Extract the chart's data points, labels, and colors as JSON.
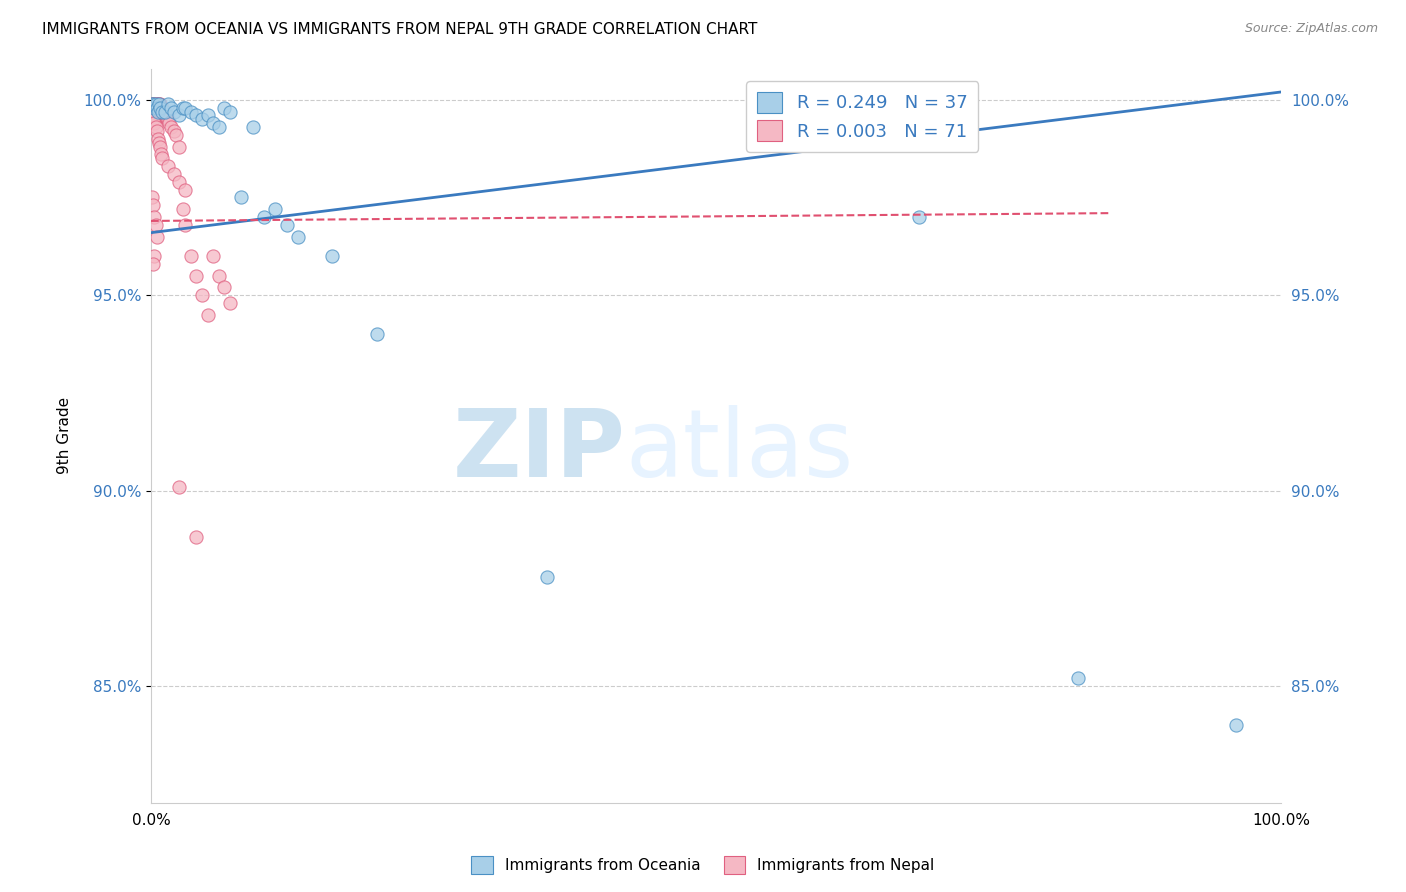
{
  "title": "IMMIGRANTS FROM OCEANIA VS IMMIGRANTS FROM NEPAL 9TH GRADE CORRELATION CHART",
  "source": "Source: ZipAtlas.com",
  "ylabel": "9th Grade",
  "yaxis_labels": [
    "100.0%",
    "95.0%",
    "90.0%",
    "85.0%"
  ],
  "yaxis_values": [
    1.0,
    0.95,
    0.9,
    0.85
  ],
  "xlim": [
    0.0,
    1.0
  ],
  "ylim": [
    0.82,
    1.008
  ],
  "color_oceania": "#a8cfe8",
  "color_nepal": "#f5b8c4",
  "edge_oceania": "#4a90c4",
  "edge_nepal": "#e06080",
  "trend_color_oceania": "#3a7abf",
  "trend_color_nepal": "#e05070",
  "background": "#ffffff",
  "watermark_zip": "ZIP",
  "watermark_atlas": "atlas",
  "oceania_x": [
    0.001,
    0.002,
    0.003,
    0.004,
    0.005,
    0.006,
    0.007,
    0.008,
    0.01,
    0.012,
    0.015,
    0.018,
    0.02,
    0.025,
    0.028,
    0.03,
    0.035,
    0.04,
    0.045,
    0.05,
    0.055,
    0.06,
    0.065,
    0.07,
    0.08,
    0.09,
    0.1,
    0.11,
    0.12,
    0.13,
    0.16,
    0.2,
    0.35,
    0.68,
    0.82,
    0.96,
    0.64
  ],
  "oceania_y": [
    0.999,
    0.999,
    0.998,
    0.999,
    0.998,
    0.997,
    0.999,
    0.998,
    0.997,
    0.997,
    0.999,
    0.998,
    0.997,
    0.996,
    0.998,
    0.998,
    0.997,
    0.996,
    0.995,
    0.996,
    0.994,
    0.993,
    0.998,
    0.997,
    0.975,
    0.993,
    0.97,
    0.972,
    0.968,
    0.965,
    0.96,
    0.94,
    0.878,
    0.97,
    0.852,
    0.84,
    0.999
  ],
  "nepal_x": [
    0.001,
    0.001,
    0.002,
    0.002,
    0.002,
    0.003,
    0.003,
    0.003,
    0.004,
    0.004,
    0.004,
    0.005,
    0.005,
    0.005,
    0.006,
    0.006,
    0.006,
    0.007,
    0.007,
    0.007,
    0.008,
    0.008,
    0.008,
    0.008,
    0.009,
    0.009,
    0.01,
    0.01,
    0.011,
    0.012,
    0.013,
    0.014,
    0.015,
    0.016,
    0.018,
    0.02,
    0.022,
    0.025,
    0.028,
    0.03,
    0.035,
    0.04,
    0.045,
    0.05,
    0.055,
    0.06,
    0.065,
    0.07,
    0.001,
    0.002,
    0.003,
    0.004,
    0.005,
    0.006,
    0.007,
    0.008,
    0.009,
    0.01,
    0.015,
    0.02,
    0.025,
    0.03,
    0.001,
    0.002,
    0.003,
    0.004,
    0.025,
    0.005,
    0.04,
    0.003,
    0.002
  ],
  "nepal_y": [
    0.999,
    0.998,
    0.999,
    0.998,
    0.997,
    0.999,
    0.998,
    0.997,
    0.999,
    0.998,
    0.997,
    0.999,
    0.998,
    0.997,
    0.999,
    0.998,
    0.997,
    0.999,
    0.998,
    0.997,
    0.999,
    0.998,
    0.997,
    0.996,
    0.998,
    0.997,
    0.998,
    0.996,
    0.996,
    0.997,
    0.996,
    0.995,
    0.995,
    0.994,
    0.993,
    0.992,
    0.991,
    0.988,
    0.972,
    0.968,
    0.96,
    0.955,
    0.95,
    0.945,
    0.96,
    0.955,
    0.952,
    0.948,
    0.996,
    0.995,
    0.994,
    0.993,
    0.992,
    0.99,
    0.989,
    0.988,
    0.986,
    0.985,
    0.983,
    0.981,
    0.979,
    0.977,
    0.975,
    0.973,
    0.97,
    0.968,
    0.901,
    0.965,
    0.888,
    0.96,
    0.958
  ],
  "trend_oceania_x0": 0.0,
  "trend_oceania_x1": 1.0,
  "trend_oceania_y0": 0.966,
  "trend_oceania_y1": 1.002,
  "trend_nepal_x0": 0.0,
  "trend_nepal_x1": 0.85,
  "trend_nepal_y0": 0.969,
  "trend_nepal_y1": 0.971
}
